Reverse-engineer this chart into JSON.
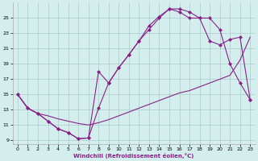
{
  "xlabel": "Windchill (Refroidissement éolien,°C)",
  "bg_color": "#d4eeed",
  "grid_color": "#aacccc",
  "line_color": "#882288",
  "xlim": [
    -0.5,
    23.5
  ],
  "ylim": [
    8.5,
    27.0
  ],
  "yticks": [
    9,
    11,
    13,
    15,
    17,
    19,
    21,
    23,
    25
  ],
  "xticks": [
    0,
    1,
    2,
    3,
    4,
    5,
    6,
    7,
    8,
    9,
    10,
    11,
    12,
    13,
    14,
    15,
    16,
    17,
    18,
    19,
    20,
    21,
    22,
    23
  ],
  "line1_x": [
    0,
    1,
    2,
    3,
    4,
    5,
    6,
    7,
    8,
    9,
    10,
    11,
    12,
    13,
    14,
    15,
    16,
    17,
    18,
    19,
    20,
    21,
    22,
    23
  ],
  "line1_y": [
    15.0,
    13.2,
    12.5,
    11.5,
    10.5,
    10.0,
    9.2,
    9.3,
    13.2,
    16.5,
    18.5,
    20.2,
    22.0,
    24.0,
    25.2,
    26.2,
    26.2,
    25.8,
    25.0,
    25.0,
    23.5,
    19.0,
    16.5,
    14.3
  ],
  "line2_x": [
    0,
    1,
    2,
    3,
    4,
    5,
    6,
    7,
    8,
    9,
    10,
    11,
    12,
    13,
    14,
    15,
    16,
    17,
    18,
    19,
    20,
    21,
    22,
    23
  ],
  "line2_y": [
    15.0,
    13.2,
    12.5,
    12.2,
    11.8,
    11.5,
    11.2,
    11.0,
    11.3,
    11.7,
    12.2,
    12.7,
    13.2,
    13.7,
    14.2,
    14.7,
    15.2,
    15.5,
    16.0,
    16.5,
    17.0,
    17.5,
    19.5,
    22.5
  ],
  "line3_x": [
    0,
    1,
    2,
    3,
    4,
    5,
    6,
    7,
    8,
    9,
    10,
    11,
    12,
    13,
    14,
    15,
    16,
    17,
    18,
    19,
    20,
    21,
    22,
    23
  ],
  "line3_y": [
    15.0,
    13.2,
    12.5,
    11.5,
    10.5,
    10.0,
    9.2,
    9.3,
    18.0,
    16.5,
    18.5,
    20.2,
    22.0,
    23.5,
    25.0,
    26.2,
    25.8,
    25.0,
    25.0,
    22.0,
    21.5,
    22.2,
    22.5,
    14.3
  ],
  "marker": "D",
  "markersize": 2.5,
  "linewidth": 0.8
}
